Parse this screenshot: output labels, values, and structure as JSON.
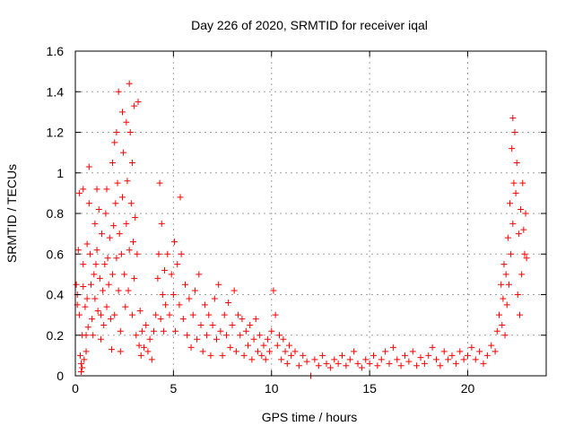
{
  "chart_data": {
    "type": "scatter",
    "title": "Day 226 of 2020, SRMTID for receiver iqal",
    "xlabel": "GPS time / hours",
    "ylabel": "SRMTID / TECUs",
    "xlim": [
      0,
      24
    ],
    "ylim": [
      0,
      1.6
    ],
    "x_ticks": [
      0,
      5,
      10,
      15,
      20
    ],
    "x_tick_labels": [
      "0",
      "5",
      "10",
      "15",
      "20"
    ],
    "y_ticks": [
      0,
      0.2,
      0.4,
      0.6,
      0.8,
      1.0,
      1.2,
      1.4,
      1.6
    ],
    "y_tick_labels": [
      "0",
      "0.2",
      "0.4",
      "0.6",
      "0.8",
      "1",
      "1.2",
      "1.4",
      "1.6"
    ],
    "grid": true,
    "marker": "plus",
    "color": "#ff0000",
    "series": [
      {
        "name": "SRMTID",
        "points": [
          [
            0.05,
            0.45
          ],
          [
            0.1,
            0.4
          ],
          [
            0.1,
            0.35
          ],
          [
            0.15,
            0.62
          ],
          [
            0.2,
            0.9
          ],
          [
            0.2,
            0.3
          ],
          [
            0.25,
            0.1
          ],
          [
            0.3,
            0.06
          ],
          [
            0.3,
            0.02
          ],
          [
            0.35,
            0.04
          ],
          [
            0.35,
            0.2
          ],
          [
            0.4,
            0.92
          ],
          [
            0.4,
            0.55
          ],
          [
            0.4,
            0.44
          ],
          [
            0.45,
            0.08
          ],
          [
            0.5,
            0.34
          ],
          [
            0.55,
            0.2
          ],
          [
            0.55,
            0.12
          ],
          [
            0.6,
            0.65
          ],
          [
            0.6,
            0.38
          ],
          [
            0.65,
            0.24
          ],
          [
            0.7,
            1.03
          ],
          [
            0.7,
            0.85
          ],
          [
            0.75,
            0.6
          ],
          [
            0.8,
            0.45
          ],
          [
            0.85,
            0.28
          ],
          [
            0.9,
            0.2
          ],
          [
            0.95,
            0.5
          ],
          [
            1.0,
            0.75
          ],
          [
            1.0,
            0.38
          ],
          [
            1.05,
            0.55
          ],
          [
            1.1,
            0.92
          ],
          [
            1.1,
            0.62
          ],
          [
            1.15,
            0.32
          ],
          [
            1.2,
            0.82
          ],
          [
            1.25,
            0.48
          ],
          [
            1.3,
            0.3
          ],
          [
            1.3,
            0.18
          ],
          [
            1.35,
            0.7
          ],
          [
            1.4,
            0.42
          ],
          [
            1.45,
            0.25
          ],
          [
            1.5,
            0.55
          ],
          [
            1.55,
            0.8
          ],
          [
            1.6,
            0.92
          ],
          [
            1.6,
            0.34
          ],
          [
            1.65,
            0.58
          ],
          [
            1.7,
            0.45
          ],
          [
            1.75,
            0.68
          ],
          [
            1.8,
            0.28
          ],
          [
            1.85,
            0.13
          ],
          [
            1.9,
            1.05
          ],
          [
            1.9,
            0.5
          ],
          [
            1.95,
            0.74
          ],
          [
            2.0,
            1.15
          ],
          [
            2.0,
            0.3
          ],
          [
            2.05,
            0.85
          ],
          [
            2.1,
            1.2
          ],
          [
            2.1,
            0.58
          ],
          [
            2.15,
            0.95
          ],
          [
            2.2,
            1.4
          ],
          [
            2.2,
            0.42
          ],
          [
            2.25,
            0.7
          ],
          [
            2.3,
            0.22
          ],
          [
            2.3,
            0.12
          ],
          [
            2.35,
            0.6
          ],
          [
            2.4,
            1.3
          ],
          [
            2.4,
            0.88
          ],
          [
            2.45,
            1.1
          ],
          [
            2.5,
            0.5
          ],
          [
            2.55,
            0.34
          ],
          [
            2.6,
            1.25
          ],
          [
            2.6,
            0.75
          ],
          [
            2.65,
            0.96
          ],
          [
            2.7,
            0.42
          ],
          [
            2.75,
            1.44
          ],
          [
            2.75,
            0.62
          ],
          [
            2.8,
            1.2
          ],
          [
            2.85,
            0.85
          ],
          [
            2.9,
            1.05
          ],
          [
            2.9,
            0.3
          ],
          [
            2.95,
            0.66
          ],
          [
            3.0,
            1.33
          ],
          [
            3.0,
            0.48
          ],
          [
            3.05,
            0.78
          ],
          [
            3.1,
            0.2
          ],
          [
            3.15,
            0.6
          ],
          [
            3.2,
            1.35
          ],
          [
            3.25,
            0.15
          ],
          [
            3.3,
            0.32
          ],
          [
            3.35,
            0.1
          ],
          [
            3.4,
            0.22
          ],
          [
            3.5,
            0.14
          ],
          [
            3.6,
            0.25
          ],
          [
            3.7,
            0.12
          ],
          [
            3.8,
            0.18
          ],
          [
            3.9,
            0.08
          ],
          [
            4.0,
            0.22
          ],
          [
            4.1,
            0.3
          ],
          [
            4.2,
            0.48
          ],
          [
            4.25,
            0.6
          ],
          [
            4.3,
            0.95
          ],
          [
            4.35,
            0.28
          ],
          [
            4.4,
            0.75
          ],
          [
            4.45,
            0.4
          ],
          [
            4.5,
            0.22
          ],
          [
            4.55,
            0.52
          ],
          [
            4.6,
            0.35
          ],
          [
            4.7,
            0.6
          ],
          [
            4.8,
            0.3
          ],
          [
            4.9,
            0.5
          ],
          [
            5.0,
            0.4
          ],
          [
            5.05,
            0.66
          ],
          [
            5.1,
            0.22
          ],
          [
            5.2,
            0.55
          ],
          [
            5.3,
            0.35
          ],
          [
            5.35,
            0.88
          ],
          [
            5.4,
            0.6
          ],
          [
            5.5,
            0.28
          ],
          [
            5.6,
            0.45
          ],
          [
            5.7,
            0.2
          ],
          [
            5.8,
            0.38
          ],
          [
            5.9,
            0.14
          ],
          [
            6.0,
            0.3
          ],
          [
            6.1,
            0.42
          ],
          [
            6.2,
            0.18
          ],
          [
            6.3,
            0.5
          ],
          [
            6.4,
            0.25
          ],
          [
            6.5,
            0.12
          ],
          [
            6.6,
            0.35
          ],
          [
            6.7,
            0.2
          ],
          [
            6.8,
            0.3
          ],
          [
            6.9,
            0.1
          ],
          [
            7.0,
            0.25
          ],
          [
            7.1,
            0.38
          ],
          [
            7.2,
            0.18
          ],
          [
            7.3,
            0.45
          ],
          [
            7.4,
            0.22
          ],
          [
            7.5,
            0.1
          ],
          [
            7.6,
            0.3
          ],
          [
            7.7,
            0.2
          ],
          [
            7.8,
            0.36
          ],
          [
            7.9,
            0.14
          ],
          [
            8.0,
            0.25
          ],
          [
            8.1,
            0.42
          ],
          [
            8.2,
            0.12
          ],
          [
            8.3,
            0.3
          ],
          [
            8.4,
            0.2
          ],
          [
            8.5,
            0.28
          ],
          [
            8.6,
            0.1
          ],
          [
            8.7,
            0.22
          ],
          [
            8.8,
            0.15
          ],
          [
            8.9,
            0.25
          ],
          [
            9.0,
            0.08
          ],
          [
            9.1,
            0.18
          ],
          [
            9.2,
            0.28
          ],
          [
            9.3,
            0.12
          ],
          [
            9.4,
            0.2
          ],
          [
            9.5,
            0.1
          ],
          [
            9.6,
            0.15
          ],
          [
            9.7,
            0.08
          ],
          [
            9.8,
            0.18
          ],
          [
            9.9,
            0.12
          ],
          [
            10.0,
            0.22
          ],
          [
            10.1,
            0.42
          ],
          [
            10.2,
            0.3
          ],
          [
            10.3,
            0.15
          ],
          [
            10.4,
            0.2
          ],
          [
            10.5,
            0.08
          ],
          [
            10.6,
            0.18
          ],
          [
            10.7,
            0.12
          ],
          [
            10.8,
            0.06
          ],
          [
            10.9,
            0.15
          ],
          [
            11.0,
            0.1
          ],
          [
            11.2,
            0.12
          ],
          [
            11.4,
            0.05
          ],
          [
            11.6,
            0.1
          ],
          [
            11.8,
            0.07
          ],
          [
            12.0,
            0.0
          ],
          [
            12.2,
            0.08
          ],
          [
            12.4,
            0.05
          ],
          [
            12.6,
            0.1
          ],
          [
            12.8,
            0.06
          ],
          [
            13.0,
            0.04
          ],
          [
            13.2,
            0.08
          ],
          [
            13.4,
            0.06
          ],
          [
            13.6,
            0.1
          ],
          [
            13.8,
            0.05
          ],
          [
            14.0,
            0.08
          ],
          [
            14.2,
            0.12
          ],
          [
            14.4,
            0.06
          ],
          [
            14.6,
            0.04
          ],
          [
            14.8,
            0.08
          ],
          [
            15.0,
            0.06
          ],
          [
            15.2,
            0.1
          ],
          [
            15.4,
            0.05
          ],
          [
            15.6,
            0.08
          ],
          [
            15.8,
            0.12
          ],
          [
            16.0,
            0.06
          ],
          [
            16.2,
            0.14
          ],
          [
            16.4,
            0.08
          ],
          [
            16.6,
            0.05
          ],
          [
            16.8,
            0.1
          ],
          [
            17.0,
            0.07
          ],
          [
            17.2,
            0.12
          ],
          [
            17.4,
            0.05
          ],
          [
            17.6,
            0.09
          ],
          [
            17.8,
            0.06
          ],
          [
            18.0,
            0.1
          ],
          [
            18.2,
            0.14
          ],
          [
            18.4,
            0.08
          ],
          [
            18.6,
            0.05
          ],
          [
            18.8,
            0.12
          ],
          [
            19.0,
            0.08
          ],
          [
            19.2,
            0.1
          ],
          [
            19.4,
            0.06
          ],
          [
            19.6,
            0.12
          ],
          [
            19.8,
            0.08
          ],
          [
            20.0,
            0.1
          ],
          [
            20.2,
            0.14
          ],
          [
            20.4,
            0.08
          ],
          [
            20.6,
            0.12
          ],
          [
            20.8,
            0.06
          ],
          [
            21.0,
            0.1
          ],
          [
            21.2,
            0.15
          ],
          [
            21.4,
            0.12
          ],
          [
            21.5,
            0.22
          ],
          [
            21.6,
            0.3
          ],
          [
            21.7,
            0.45
          ],
          [
            21.75,
            0.25
          ],
          [
            21.8,
            0.38
          ],
          [
            21.85,
            0.55
          ],
          [
            21.9,
            0.2
          ],
          [
            21.95,
            0.5
          ],
          [
            22.0,
            0.35
          ],
          [
            22.05,
            0.68
          ],
          [
            22.1,
            0.45
          ],
          [
            22.15,
            0.85
          ],
          [
            22.2,
            0.6
          ],
          [
            22.25,
            1.12
          ],
          [
            22.3,
            0.75
          ],
          [
            22.3,
            1.27
          ],
          [
            22.35,
            0.95
          ],
          [
            22.4,
            1.2
          ],
          [
            22.45,
            0.9
          ],
          [
            22.5,
            1.05
          ],
          [
            22.55,
            0.4
          ],
          [
            22.6,
            0.7
          ],
          [
            22.65,
            0.3
          ],
          [
            22.7,
            0.82
          ],
          [
            22.75,
            0.5
          ],
          [
            22.8,
            0.95
          ],
          [
            22.85,
            0.72
          ],
          [
            22.9,
            0.6
          ],
          [
            22.95,
            0.8
          ],
          [
            23.0,
            0.58
          ]
        ]
      }
    ]
  }
}
